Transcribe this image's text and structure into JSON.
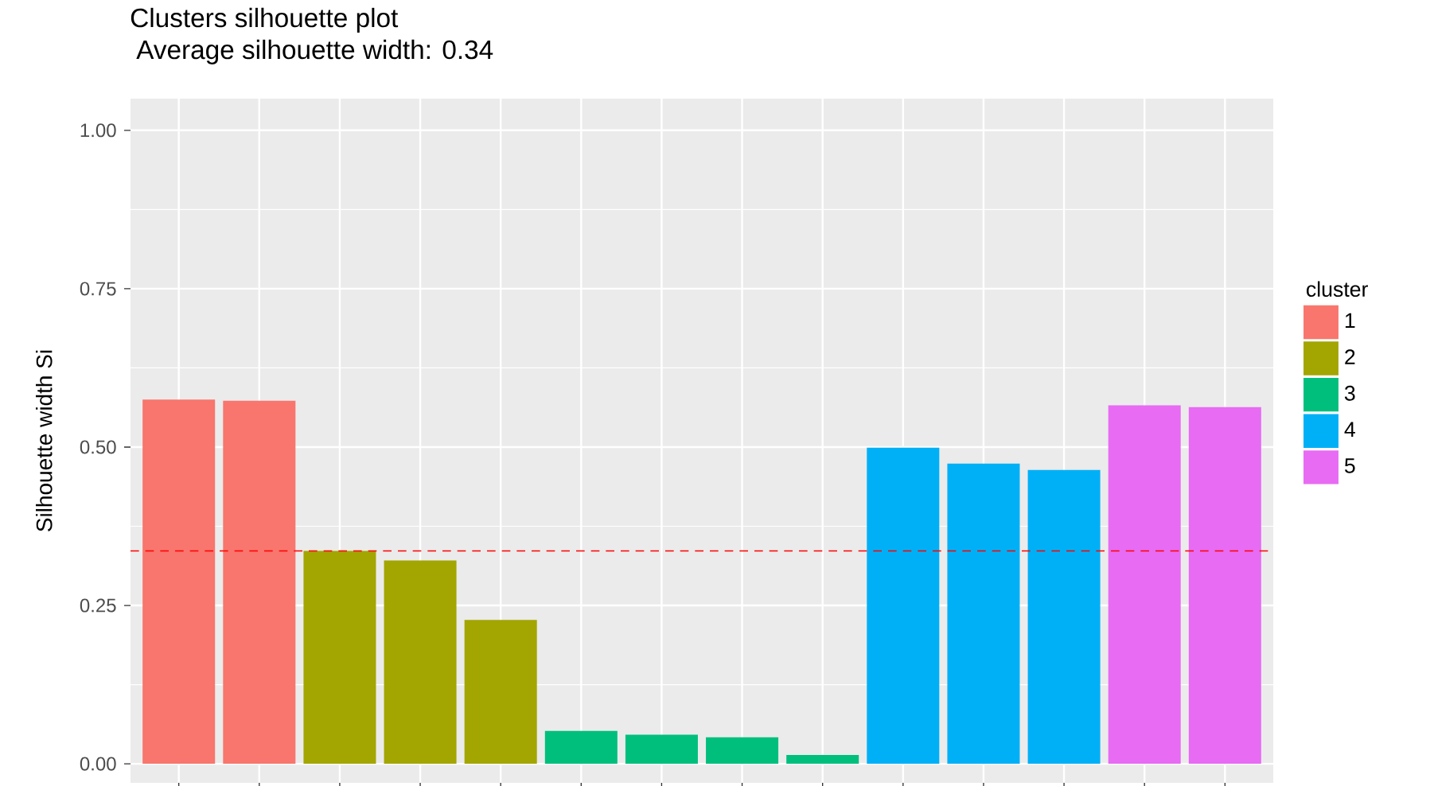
{
  "chart_data": {
    "type": "bar",
    "title": "Clusters silhouette plot",
    "subtitle": "Average silhouette width: 0.34",
    "ylabel": "Silhouette width Si",
    "legend_title": "cluster",
    "categories": [
      null,
      null,
      null,
      null,
      null,
      null,
      null,
      null,
      null,
      null,
      null,
      null,
      null,
      null
    ],
    "series": [
      {
        "name": "1",
        "color": "#f8766d",
        "values": [
          0.575,
          0.573,
          null,
          null,
          null,
          null,
          null,
          null,
          null,
          null,
          null,
          null,
          null,
          null
        ]
      },
      {
        "name": "2",
        "color": "#a3a500",
        "values": [
          null,
          null,
          0.336,
          0.321,
          0.227,
          null,
          null,
          null,
          null,
          null,
          null,
          null,
          null,
          null
        ]
      },
      {
        "name": "3",
        "color": "#00bf7d",
        "values": [
          null,
          null,
          null,
          null,
          null,
          0.052,
          0.046,
          0.042,
          0.014,
          null,
          null,
          null,
          null,
          null
        ]
      },
      {
        "name": "4",
        "color": "#00b0f6",
        "values": [
          null,
          null,
          null,
          null,
          null,
          null,
          null,
          null,
          null,
          0.499,
          0.474,
          0.464,
          null,
          null
        ]
      },
      {
        "name": "5",
        "color": "#e76bf3",
        "values": [
          null,
          null,
          null,
          null,
          null,
          null,
          null,
          null,
          null,
          null,
          null,
          null,
          0.566,
          0.563
        ]
      }
    ],
    "ylim": [
      -0.03,
      1.05
    ],
    "yticks": [
      {
        "value": 0,
        "label": "0.00"
      },
      {
        "value": 0.25,
        "label": "0.25"
      },
      {
        "value": 0.5,
        "label": "0.50"
      },
      {
        "value": 0.75,
        "label": "0.75"
      },
      {
        "value": 1,
        "label": "1.00"
      }
    ],
    "ref_lines": [
      {
        "axis": "y",
        "value": 0.336,
        "color": "#ff0000",
        "line_style": "dashed"
      }
    ],
    "grid": true,
    "legend": "right",
    "tick_labels": "y"
  }
}
